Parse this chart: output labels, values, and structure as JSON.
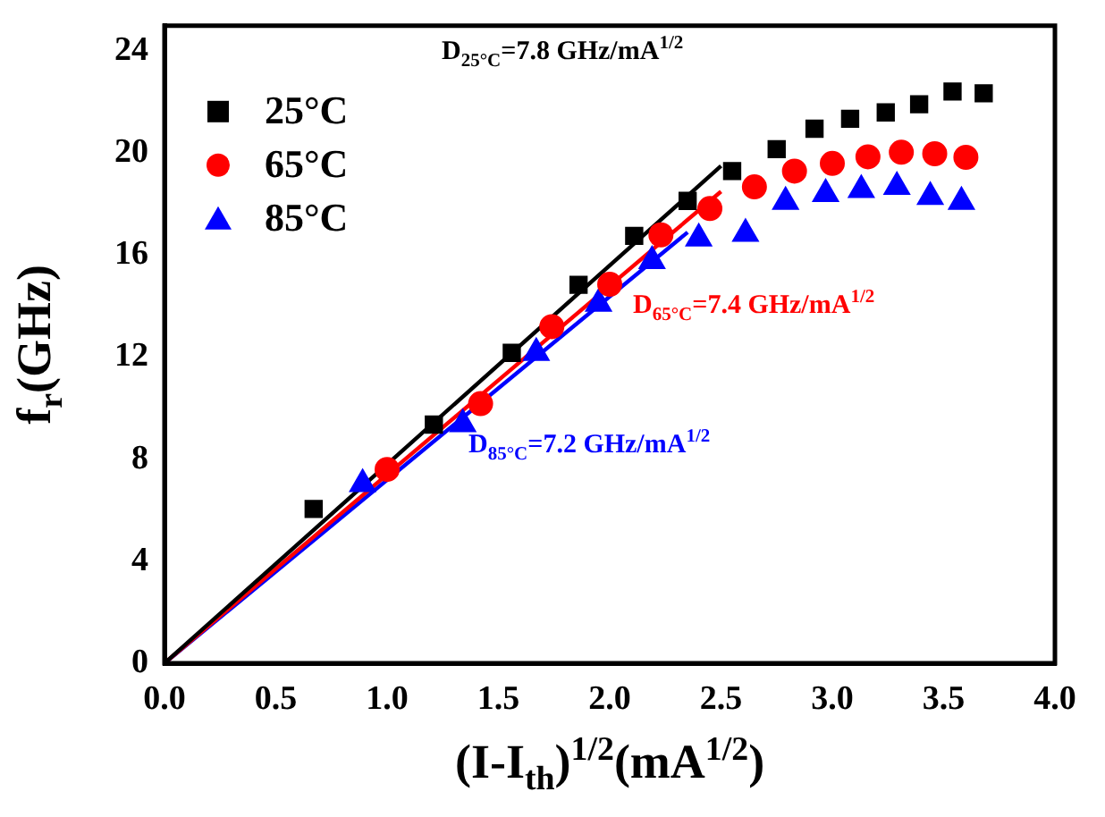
{
  "chart_data": {
    "type": "scatter",
    "xlabel": "(I-I$_{th}$)$^{1/2}$(mA$^{1/2}$)",
    "ylabel": "f$_{r}$(GHz)",
    "xlim": [
      0,
      4
    ],
    "xticks": [
      {
        "value": 0,
        "label": "0.0"
      },
      {
        "value": 0.5,
        "label": "0.5"
      },
      {
        "value": 1,
        "label": "1.0"
      },
      {
        "value": 1.5,
        "label": "1.5"
      },
      {
        "value": 2,
        "label": "2.0"
      },
      {
        "value": 2.5,
        "label": "2.5"
      },
      {
        "value": 3,
        "label": "3.0"
      },
      {
        "value": 3.5,
        "label": "3.5"
      },
      {
        "value": 4,
        "label": "4.0"
      }
    ],
    "ylim": [
      0,
      25
    ],
    "yticks": [
      0,
      4,
      8,
      12,
      16,
      20,
      24
    ],
    "grid": false,
    "legend": "top left",
    "series": [
      {
        "name": "25°C",
        "type": "scatter",
        "marker": "square",
        "color": "#000000",
        "x": [
          0.67,
          1.21,
          1.56,
          1.86,
          2.11,
          2.35,
          2.55,
          2.75,
          2.92,
          3.08,
          3.24,
          3.39,
          3.54,
          3.68
        ],
        "values": [
          6.05,
          9.36,
          12.17,
          14.84,
          16.76,
          18.13,
          19.3,
          20.16,
          20.96,
          21.35,
          21.6,
          21.92,
          22.42,
          22.35
        ]
      },
      {
        "name": "65°C",
        "type": "scatter",
        "marker": "circle",
        "color": "#ff0000",
        "x": [
          1.0,
          1.42,
          1.74,
          2.0,
          2.23,
          2.45,
          2.65,
          2.83,
          3.0,
          3.16,
          3.31,
          3.46,
          3.6
        ],
        "values": [
          7.6,
          10.18,
          13.2,
          14.86,
          16.8,
          17.83,
          18.68,
          19.3,
          19.6,
          19.86,
          20.04,
          19.98,
          19.84
        ]
      },
      {
        "name": "85°C",
        "type": "scatter",
        "marker": "triangle",
        "color": "#0000ff",
        "x": [
          0.89,
          1.34,
          1.67,
          1.95,
          2.19,
          2.4,
          2.61,
          2.79,
          2.97,
          3.13,
          3.29,
          3.44,
          3.58
        ],
        "values": [
          7.03,
          9.38,
          12.17,
          14.1,
          15.77,
          16.66,
          16.84,
          18.1,
          18.4,
          18.56,
          18.68,
          18.29,
          18.1
        ]
      },
      {
        "type": "line",
        "marker": "none",
        "color": "#000000",
        "x": [
          0,
          2.5
        ],
        "values": [
          0,
          19.5
        ]
      },
      {
        "type": "line",
        "marker": "none",
        "color": "#ff0000",
        "x": [
          0,
          2.5
        ],
        "values": [
          0,
          18.5
        ]
      },
      {
        "type": "line",
        "marker": "none",
        "color": "#0000ff",
        "x": [
          0,
          2.35
        ],
        "values": [
          0,
          16.9
        ]
      }
    ],
    "annotations": [
      "D$_{25°C}$=7.8 GHz/mA$^{1/2}$",
      "D$_{65°C}$=7.4 GHz/mA$^{1/2}$",
      "D$_{85°C}$=7.2 GHz/mA$^{1/2}$"
    ]
  }
}
